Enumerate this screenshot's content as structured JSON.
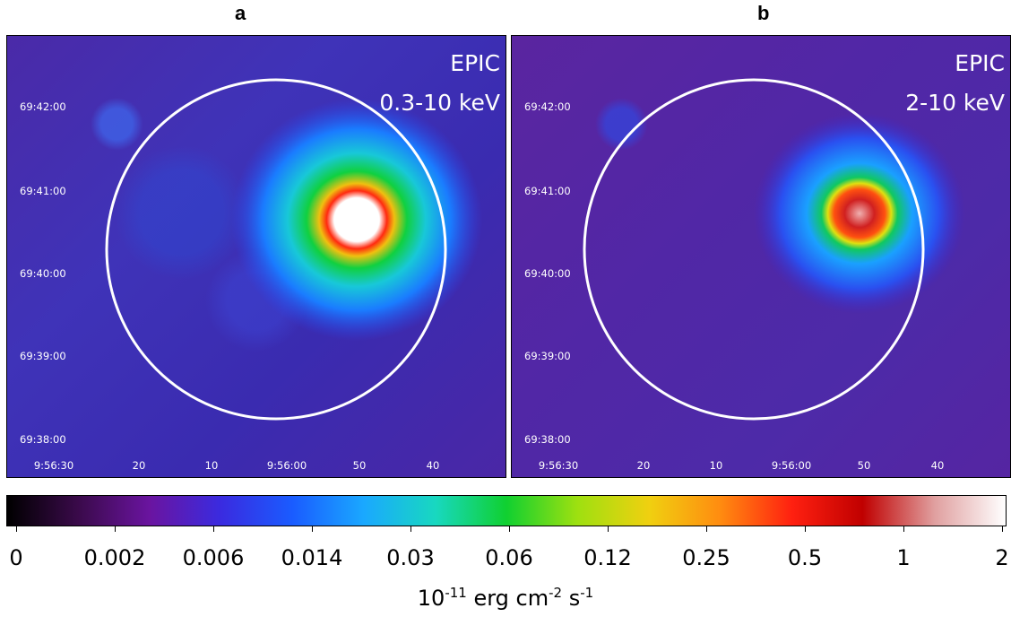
{
  "panels": [
    {
      "letter": "a",
      "instrument": "EPIC",
      "band": "0.3-10 keV",
      "y_ticks": [
        "69:42:00",
        "69:41:00",
        "69:40:00",
        "69:39:00",
        "69:38:00"
      ],
      "x_ticks": [
        "9:56:30",
        "20",
        "10",
        "9:56:00",
        "50",
        "40"
      ]
    },
    {
      "letter": "b",
      "instrument": "EPIC",
      "band": "2-10 keV",
      "y_ticks": [
        "69:42:00",
        "69:41:00",
        "69:40:00",
        "69:39:00",
        "69:38:00"
      ],
      "x_ticks": [
        "9:56:30",
        "20",
        "10",
        "9:56:00",
        "50",
        "40"
      ]
    }
  ],
  "colorbar": {
    "ticks": [
      "0",
      "0.002",
      "0.006",
      "0.014",
      "0.03",
      "0.06",
      "0.12",
      "0.25",
      "0.5",
      "1",
      "2"
    ],
    "units_base": "10",
    "units_exp": "-11",
    "units_erg": "erg cm",
    "units_cm_exp": "-2",
    "units_s": "s",
    "units_s_exp": "-1",
    "colors": [
      "#000000",
      "#3a0a4a",
      "#6a14a0",
      "#3a2be0",
      "#1a5cff",
      "#1aa8ff",
      "#18d8c0",
      "#10d030",
      "#9ee010",
      "#f0d010",
      "#ff8c10",
      "#ff2010",
      "#c00000",
      "#e0a0a0",
      "#ffffff"
    ]
  }
}
